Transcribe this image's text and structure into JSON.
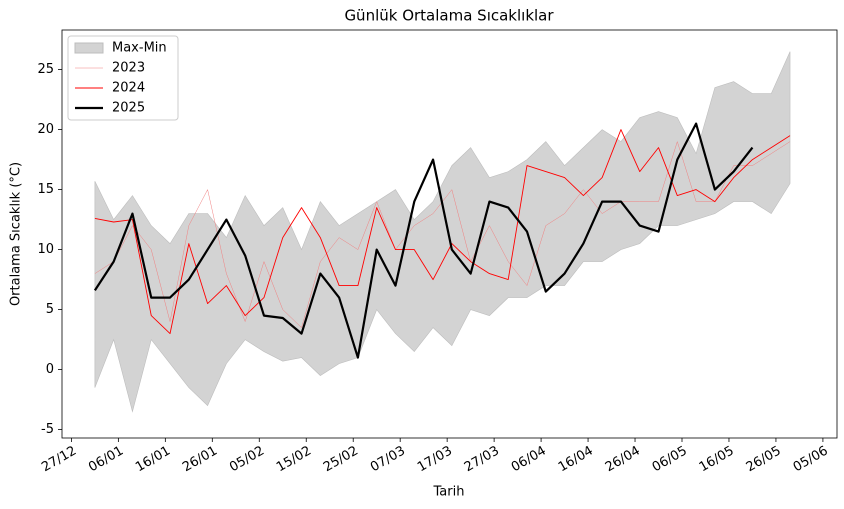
{
  "chart_data": {
    "type": "line",
    "title": "Günlük Ortalama Sıcaklıklar",
    "xlabel": "Tarih",
    "ylabel": "Ortalama Sıcaklık (°C)",
    "x": [
      "01/01",
      "05/01",
      "09/01",
      "13/01",
      "17/01",
      "21/01",
      "25/01",
      "29/01",
      "02/02",
      "06/02",
      "10/02",
      "14/02",
      "18/02",
      "22/02",
      "26/02",
      "02/03",
      "06/03",
      "10/03",
      "14/03",
      "18/03",
      "22/03",
      "26/03",
      "30/03",
      "03/04",
      "07/04",
      "11/04",
      "15/04",
      "19/04",
      "23/04",
      "27/04",
      "01/05",
      "05/05",
      "09/05",
      "13/05",
      "17/05",
      "21/05",
      "25/05",
      "29/05"
    ],
    "band": {
      "name": "Max-Min",
      "color": "#d3d3d3",
      "upper": [
        15.7,
        12.5,
        14.5,
        12,
        10.5,
        13,
        13,
        11,
        14.5,
        12,
        13.5,
        10,
        14,
        12,
        13,
        14,
        15,
        12.5,
        14,
        17,
        18.5,
        16,
        16.5,
        17.5,
        19,
        17,
        18.5,
        20,
        19,
        21,
        21.5,
        21,
        18,
        23.5,
        24,
        23,
        23,
        26.5
      ],
      "lower": [
        -1.5,
        2.5,
        -3.5,
        2.5,
        0.5,
        -1.5,
        -3,
        0.5,
        2.5,
        1.5,
        0.7,
        1,
        -0.5,
        0.5,
        1,
        5,
        3,
        1.5,
        3.5,
        2,
        5,
        4.5,
        6,
        6,
        7,
        7,
        9,
        9,
        10,
        10.5,
        12,
        12,
        12.5,
        13,
        14,
        14,
        13,
        15.5
      ]
    },
    "series": [
      {
        "name": "2023",
        "color": "#f08080",
        "values": [
          8,
          9,
          12,
          10,
          4,
          12,
          15,
          8,
          4,
          9,
          5,
          3.5,
          9,
          11,
          10,
          14,
          10,
          12,
          13,
          15,
          9,
          12,
          9,
          7,
          12,
          13,
          15,
          13,
          14,
          14,
          14,
          19,
          14,
          14,
          17,
          17,
          18,
          19
        ]
      },
      {
        "name": "2024",
        "color": "#ff0000",
        "values": [
          12.6,
          12.3,
          12.5,
          4.5,
          3,
          10.5,
          5.5,
          7,
          4.5,
          6,
          11,
          13.5,
          11,
          7,
          7,
          13.5,
          10,
          10,
          7.5,
          10.5,
          9,
          8,
          7.5,
          17,
          16.5,
          16,
          14.5,
          16,
          20,
          16.5,
          18.5,
          14.5,
          15,
          14,
          16,
          17.5,
          18.5,
          19.5
        ]
      },
      {
        "name": "2025",
        "color": "#000000",
        "values": [
          6.6,
          9,
          13,
          6,
          6,
          7.5,
          10,
          12.5,
          9.5,
          4.5,
          4.3,
          3,
          8,
          6,
          1,
          10,
          7,
          14,
          17.5,
          10,
          8,
          14,
          13.5,
          11.5,
          6.5,
          8,
          10.5,
          14,
          14,
          12,
          11.5,
          17.5,
          20.5,
          15,
          16.5,
          18.5,
          null,
          null
        ]
      }
    ],
    "xlim": [
      "25/12",
      "08/06"
    ],
    "xticks": [
      "27/12",
      "06/01",
      "16/01",
      "26/01",
      "05/02",
      "15/02",
      "25/02",
      "07/03",
      "17/03",
      "27/03",
      "06/04",
      "16/04",
      "26/04",
      "06/05",
      "16/05",
      "26/05",
      "05/06"
    ],
    "ylim": [
      -5.7,
      28.3
    ],
    "yticks": [
      -5,
      0,
      5,
      10,
      15,
      20,
      25
    ],
    "legend": "upper left"
  }
}
